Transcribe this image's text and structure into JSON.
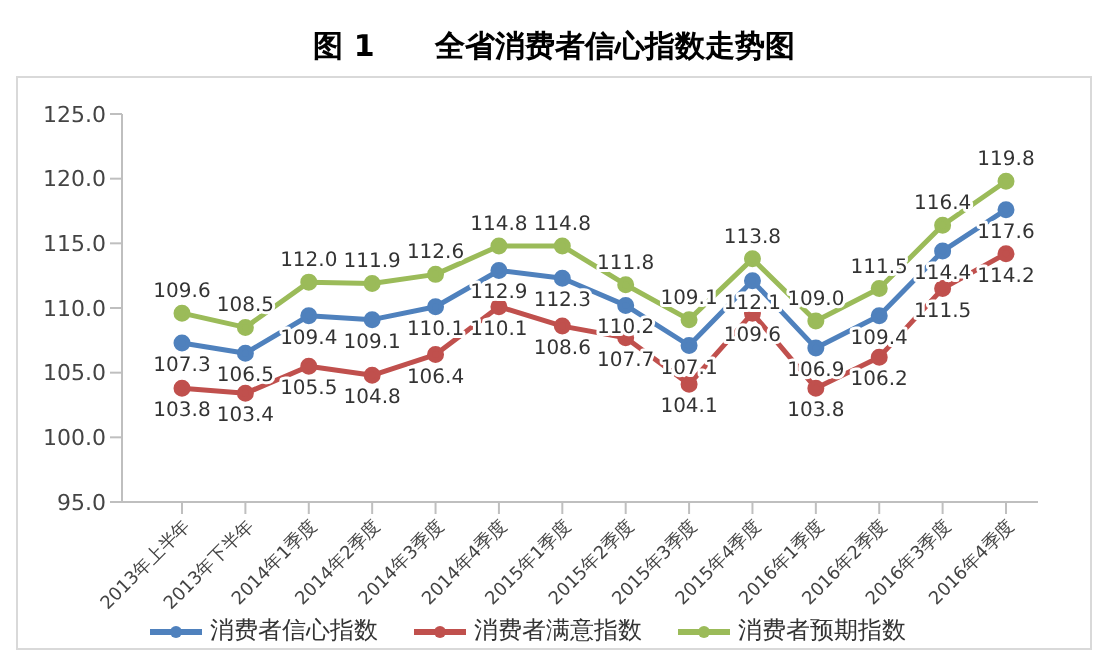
{
  "chart_data": {
    "type": "line",
    "title": "图 1　　全省消费者信心指数走势图",
    "categories": [
      "2013年上半年",
      "2013年下半年",
      "2014年1季度",
      "2014年2季度",
      "2014年3季度",
      "2014年4季度",
      "2015年1季度",
      "2015年2季度",
      "2015年3季度",
      "2015年4季度",
      "2016年1季度",
      "2016年2季度",
      "2016年3季度",
      "2016年4季度"
    ],
    "series": [
      {
        "name": "消费者信心指数",
        "color": "#4f81bd",
        "values": [
          107.3,
          106.5,
          109.4,
          109.1,
          110.1,
          112.9,
          112.3,
          110.2,
          107.1,
          112.1,
          106.9,
          109.4,
          114.4,
          117.6
        ],
        "value_labels": [
          "107.3",
          "106.5",
          "109.4",
          "109.1",
          "110.1",
          "112.9",
          "112.3",
          "110.2",
          "107.1",
          "112.1",
          "106.9",
          "109.4",
          "114.4",
          "117.6"
        ]
      },
      {
        "name": "消费者满意指数",
        "color": "#c0504d",
        "values": [
          103.8,
          103.4,
          105.5,
          104.8,
          106.4,
          110.1,
          108.6,
          107.7,
          104.1,
          109.6,
          103.8,
          106.2,
          111.5,
          114.2
        ],
        "value_labels": [
          "103.8",
          "103.4",
          "105.5",
          "104.8",
          "106.4",
          "110.1",
          "108.6",
          "107.7",
          "104.1",
          "109.6",
          "103.8",
          "106.2",
          "111.5",
          "114.2"
        ]
      },
      {
        "name": "消费者预期指数",
        "color": "#9bbb59",
        "values": [
          109.6,
          108.5,
          112.0,
          111.9,
          112.6,
          114.8,
          114.8,
          111.8,
          109.1,
          113.8,
          109.0,
          111.5,
          116.4,
          119.8
        ],
        "value_labels": [
          "109.6",
          "108.5",
          "112.0",
          "111.9",
          "112.6",
          "114.8",
          "114.8",
          "111.8",
          "109.1",
          "113.8",
          "109.0",
          "111.5",
          "116.4",
          "119.8"
        ]
      }
    ],
    "ylim": [
      95,
      125
    ],
    "yticks": [
      {
        "value": 95,
        "label": "95.0"
      },
      {
        "value": 100,
        "label": "100.0"
      },
      {
        "value": 105,
        "label": "105.0"
      },
      {
        "value": 110,
        "label": "110.0"
      },
      {
        "value": 115,
        "label": "115.0"
      },
      {
        "value": 120,
        "label": "120.0"
      },
      {
        "value": 125,
        "label": "125.0"
      }
    ],
    "grid": false,
    "legend": "bottom",
    "marker": "circle"
  }
}
